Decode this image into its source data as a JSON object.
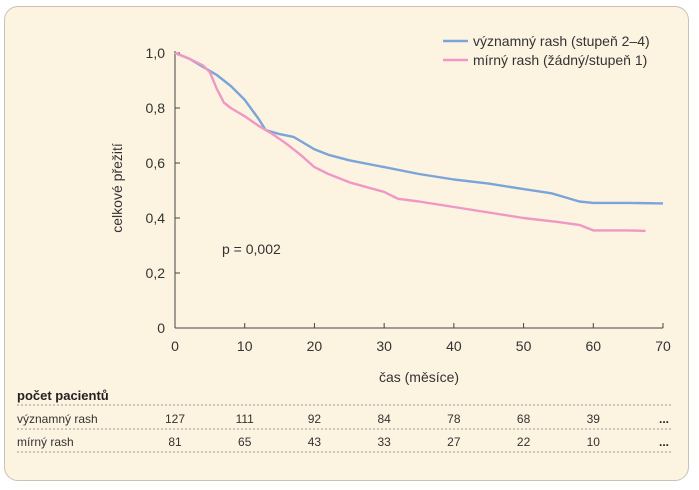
{
  "chart_data": {
    "type": "line",
    "title": "",
    "xlabel": "čas (měsíce)",
    "ylabel": "celkové přežití",
    "xlim": [
      0,
      70
    ],
    "ylim": [
      0,
      1.0
    ],
    "x_ticks": [
      0,
      10,
      20,
      30,
      40,
      50,
      60,
      70
    ],
    "x_tick_labels": [
      "0",
      "10",
      "20",
      "30",
      "40",
      "50",
      "60",
      "70"
    ],
    "y_ticks": [
      0,
      0.2,
      0.4,
      0.6,
      0.8,
      1.0
    ],
    "y_tick_labels": [
      "0",
      "0,2",
      "0,4",
      "0,6",
      "0,8",
      "1,0"
    ],
    "grid": false,
    "legend_position": "top-right",
    "annotation": "p = 0,002",
    "series": [
      {
        "name": "významný rash (stupeň 2–4)",
        "color": "#7aa5d8",
        "points": [
          [
            0,
            1.0
          ],
          [
            2,
            0.98
          ],
          [
            4,
            0.95
          ],
          [
            6,
            0.92
          ],
          [
            8,
            0.88
          ],
          [
            10,
            0.83
          ],
          [
            12,
            0.76
          ],
          [
            13,
            0.72
          ],
          [
            15,
            0.705
          ],
          [
            17,
            0.695
          ],
          [
            18,
            0.68
          ],
          [
            20,
            0.65
          ],
          [
            22,
            0.63
          ],
          [
            25,
            0.61
          ],
          [
            30,
            0.585
          ],
          [
            35,
            0.56
          ],
          [
            40,
            0.54
          ],
          [
            45,
            0.525
          ],
          [
            50,
            0.505
          ],
          [
            54,
            0.49
          ],
          [
            56,
            0.475
          ],
          [
            58,
            0.46
          ],
          [
            60,
            0.455
          ],
          [
            65,
            0.455
          ],
          [
            70,
            0.453
          ]
        ]
      },
      {
        "name": "mírný rash (žádný/stupeň 1)",
        "color": "#f097c4",
        "points": [
          [
            0,
            1.0
          ],
          [
            2,
            0.98
          ],
          [
            4,
            0.955
          ],
          [
            5,
            0.93
          ],
          [
            6,
            0.87
          ],
          [
            7,
            0.82
          ],
          [
            8,
            0.8
          ],
          [
            10,
            0.77
          ],
          [
            12,
            0.735
          ],
          [
            14,
            0.705
          ],
          [
            16,
            0.67
          ],
          [
            18,
            0.63
          ],
          [
            20,
            0.585
          ],
          [
            22,
            0.56
          ],
          [
            25,
            0.53
          ],
          [
            30,
            0.495
          ],
          [
            32,
            0.47
          ],
          [
            35,
            0.46
          ],
          [
            40,
            0.44
          ],
          [
            45,
            0.42
          ],
          [
            50,
            0.4
          ],
          [
            55,
            0.385
          ],
          [
            58,
            0.375
          ],
          [
            60,
            0.355
          ],
          [
            65,
            0.355
          ],
          [
            67.5,
            0.353
          ]
        ]
      }
    ]
  },
  "risk_table": {
    "title": "počet pacientů",
    "times": [
      0,
      10,
      20,
      30,
      40,
      50,
      60
    ],
    "rows": [
      {
        "label": "významný rash",
        "values": [
          "127",
          "111",
          "92",
          "84",
          "78",
          "68",
          "39"
        ],
        "ellipsis": "..."
      },
      {
        "label": "mírný rash",
        "values": [
          "81",
          "65",
          "43",
          "33",
          "27",
          "22",
          "10"
        ],
        "ellipsis": "..."
      }
    ]
  },
  "colors": {
    "background": "#fdf3e1",
    "axis": "#444444",
    "divider": "#999999"
  }
}
